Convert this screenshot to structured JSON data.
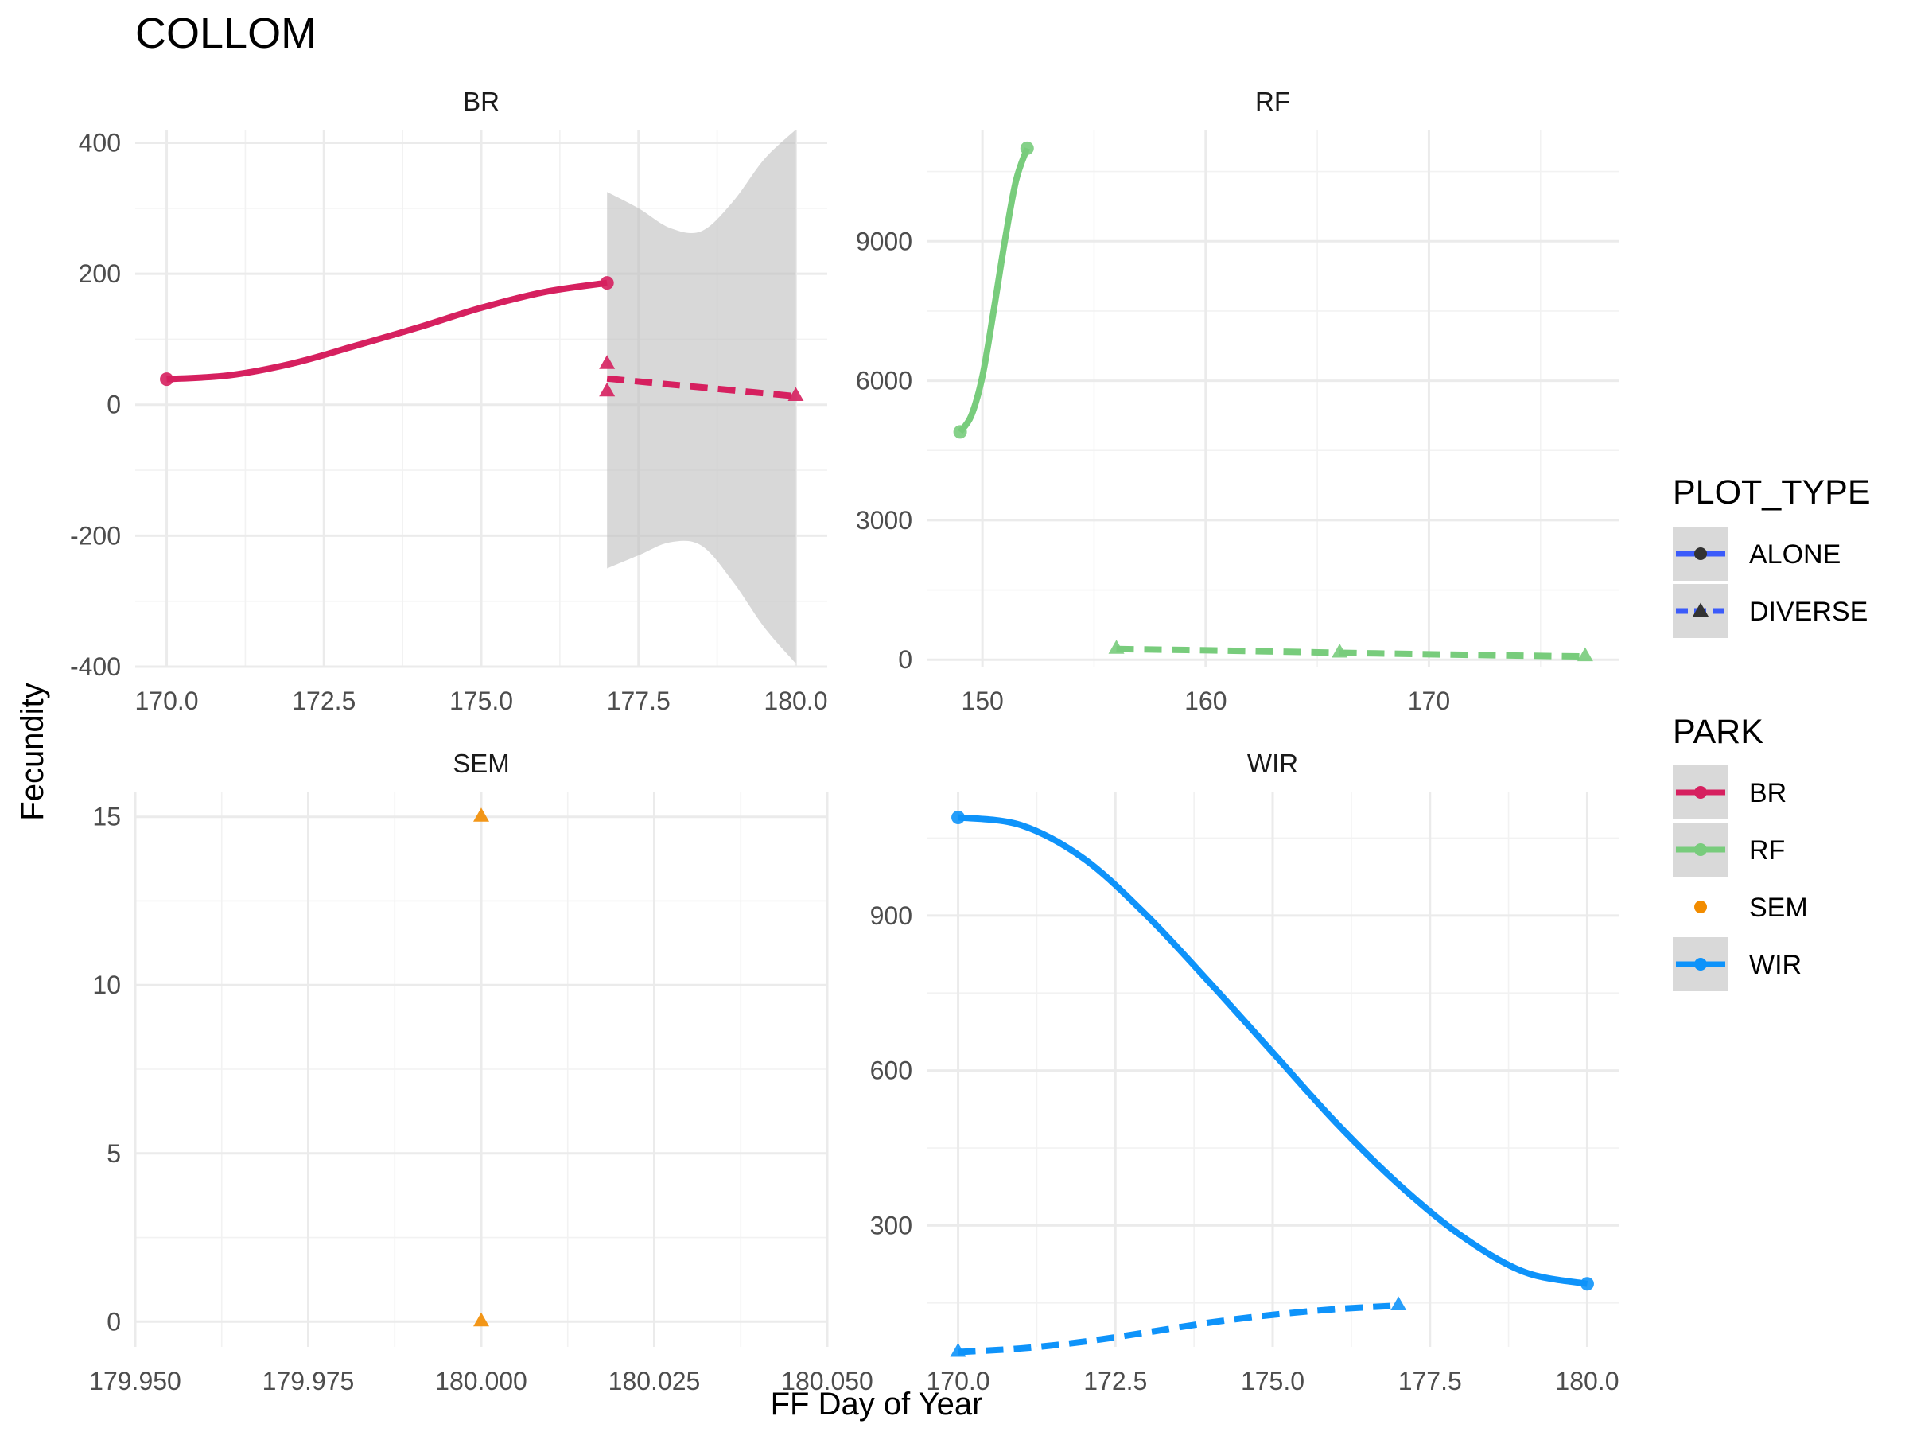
{
  "chart_data": {
    "type": "line",
    "title": "COLLOM",
    "xlabel": "FF Day of Year",
    "ylabel": "Fecundity",
    "facets": [
      {
        "name": "BR",
        "xlim": [
          169.5,
          180.5
        ],
        "ylim": [
          -400,
          420
        ],
        "x_ticks": [
          "170.0",
          "172.5",
          "175.0",
          "177.5",
          "180.0"
        ],
        "x_tick_values": [
          170,
          172.5,
          175,
          177.5,
          180
        ],
        "y_ticks": [
          "400",
          "200",
          "0",
          "-200",
          "-400"
        ],
        "y_tick_values": [
          400,
          200,
          0,
          -200,
          -400
        ],
        "color": "#D6205F",
        "series": [
          {
            "plot_type": "ALONE",
            "points": [
              [
                170,
                39
              ],
              [
                177,
                186
              ]
            ],
            "curve": [
              [
                170,
                39
              ],
              [
                171,
                45
              ],
              [
                172,
                63
              ],
              [
                173,
                90
              ],
              [
                174,
                118
              ],
              [
                175,
                148
              ],
              [
                176,
                172
              ],
              [
                177,
                186
              ]
            ]
          },
          {
            "plot_type": "DIVERSE",
            "points": [
              [
                177,
                62
              ],
              [
                177,
                20
              ],
              [
                180,
                13
              ]
            ],
            "curve": [
              [
                177,
                40
              ],
              [
                178,
                31
              ],
              [
                179,
                22
              ],
              [
                180,
                13
              ]
            ],
            "ribbon": {
              "x": [
                177,
                177.5,
                178,
                178.5,
                179,
                179.5,
                180
              ],
              "upper": [
                325,
                300,
                270,
                265,
                310,
                375,
                420
              ],
              "lower": [
                -250,
                -230,
                -210,
                -215,
                -270,
                -340,
                -395
              ]
            }
          }
        ]
      },
      {
        "name": "RF",
        "xlim": [
          147.5,
          178.5
        ],
        "ylim": [
          -150,
          11400
        ],
        "x_ticks": [
          "150",
          "160",
          "170"
        ],
        "x_tick_values": [
          150,
          160,
          170
        ],
        "y_ticks": [
          "9000",
          "6000",
          "3000",
          "0"
        ],
        "y_tick_values": [
          9000,
          6000,
          3000,
          0
        ],
        "color": "#78CC7C",
        "series": [
          {
            "plot_type": "ALONE",
            "points": [
              [
                149,
                4900
              ],
              [
                152,
                11000
              ]
            ],
            "curve": [
              [
                149,
                4900
              ],
              [
                149.5,
                5250
              ],
              [
                150,
                6100
              ],
              [
                150.5,
                7500
              ],
              [
                151,
                9000
              ],
              [
                151.5,
                10300
              ],
              [
                152,
                11000
              ]
            ]
          },
          {
            "plot_type": "DIVERSE",
            "points": [
              [
                156,
                230
              ],
              [
                166,
                150
              ],
              [
                177,
                70
              ]
            ],
            "curve": [
              [
                156,
                230
              ],
              [
                161,
                195
              ],
              [
                166,
                150
              ],
              [
                171,
                110
              ],
              [
                177,
                70
              ]
            ]
          }
        ]
      },
      {
        "name": "SEM",
        "xlim": [
          179.95,
          180.05
        ],
        "ylim": [
          -0.75,
          15.75
        ],
        "x_ticks": [
          "179.950",
          "179.975",
          "180.000",
          "180.025",
          "180.050"
        ],
        "x_tick_values": [
          179.95,
          179.975,
          180,
          180.025,
          180.05
        ],
        "y_ticks": [
          "15",
          "10",
          "5",
          "0"
        ],
        "y_tick_values": [
          15,
          10,
          5,
          0
        ],
        "color": "#F28C00",
        "series": [
          {
            "plot_type": "DIVERSE",
            "points": [
              [
                180,
                15
              ],
              [
                180,
                0
              ]
            ],
            "curve": []
          }
        ]
      },
      {
        "name": "WIR",
        "xlim": [
          169.5,
          180.5
        ],
        "ylim": [
          65,
          1140
        ],
        "x_ticks": [
          "170.0",
          "172.5",
          "175.0",
          "177.5",
          "180.0"
        ],
        "x_tick_values": [
          170,
          172.5,
          175,
          177.5,
          180
        ],
        "y_ticks": [
          "900",
          "600",
          "300"
        ],
        "y_tick_values": [
          900,
          600,
          300
        ],
        "color": "#0E93FA",
        "series": [
          {
            "plot_type": "ALONE",
            "points": [
              [
                170,
                1090
              ],
              [
                180,
                187
              ]
            ],
            "curve": [
              [
                170,
                1090
              ],
              [
                171,
                1075
              ],
              [
                172,
                1010
              ],
              [
                173,
                900
              ],
              [
                174,
                770
              ],
              [
                175,
                635
              ],
              [
                176,
                500
              ],
              [
                177,
                380
              ],
              [
                178,
                280
              ],
              [
                179,
                210
              ],
              [
                180,
                187
              ]
            ]
          },
          {
            "plot_type": "DIVERSE",
            "points": [
              [
                170,
                55
              ],
              [
                177,
                145
              ]
            ],
            "curve": [
              [
                170,
                55
              ],
              [
                171,
                62
              ],
              [
                172,
                75
              ],
              [
                173,
                93
              ],
              [
                174,
                112
              ],
              [
                175,
                127
              ],
              [
                176,
                138
              ],
              [
                177,
                145
              ]
            ]
          }
        ]
      }
    ],
    "legend": {
      "position": "right",
      "plot_type": {
        "title": "PLOT_TYPE",
        "entries": [
          {
            "label": "ALONE",
            "shape": "circle",
            "linetype": "solid"
          },
          {
            "label": "DIVERSE",
            "shape": "triangle",
            "linetype": "dashed"
          }
        ]
      },
      "park": {
        "title": "PARK",
        "entries": [
          {
            "label": "BR",
            "color": "#D6205F"
          },
          {
            "label": "RF",
            "color": "#78CC7C"
          },
          {
            "label": "SEM",
            "color": "#F28C00"
          },
          {
            "label": "WIR",
            "color": "#0E93FA"
          }
        ]
      }
    },
    "legend_key_color": "#3B5BFA",
    "ribbon_color": "#BEBEBE",
    "grid": true
  }
}
